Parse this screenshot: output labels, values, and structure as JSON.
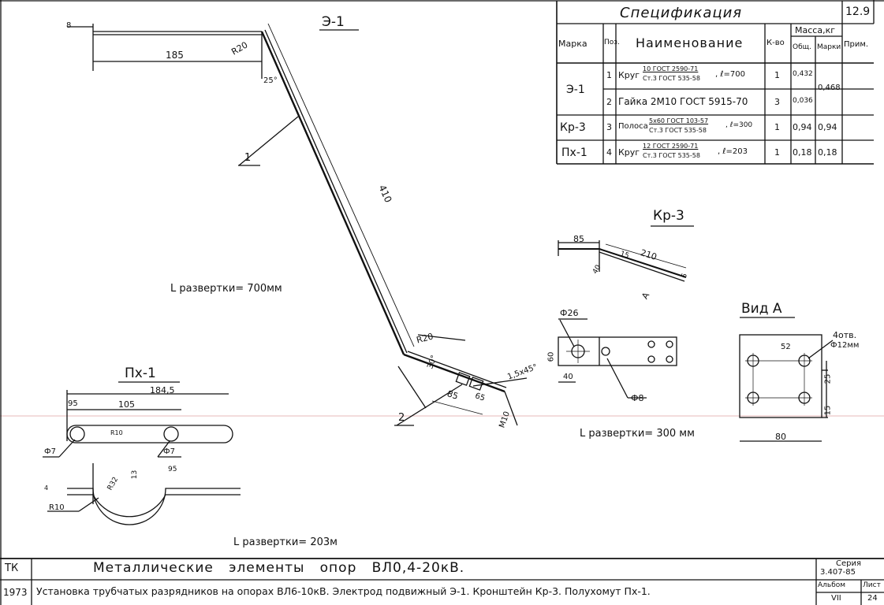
{
  "sheet_number": "12.9",
  "spec": {
    "title": "Спецификация",
    "headers": {
      "marka": "Марка",
      "poz": "Поз.",
      "name": "Наименование",
      "qty": "К-во",
      "mass": "Масса,кг",
      "mass_total": "Общ.",
      "mass_mark": "Марки",
      "note": "Прим."
    },
    "rows": [
      {
        "marka": "Э-1",
        "poz": "1",
        "name_pre": "Круг",
        "frac_top": "10 ГОСТ 2590-71",
        "frac_bottom": "Ст.3 ГОСТ 535-58",
        "name_post": ", ℓ=700",
        "qty": "1",
        "mass_total": "0,432",
        "mass_mark": "0,468"
      },
      {
        "marka": "",
        "poz": "2",
        "name_pre": "Гайка 2М10 ГОСТ 5915-70",
        "frac_top": "",
        "frac_bottom": "",
        "name_post": "",
        "qty": "3",
        "mass_total": "0,036",
        "mass_mark": ""
      },
      {
        "marka": "Кр-3",
        "poz": "3",
        "name_pre": "Полоса",
        "frac_top": "5х60 ГОСТ 103-57",
        "frac_bottom": "Ст.3 ГОСТ 535-58",
        "name_post": ", ℓ=300",
        "qty": "1",
        "mass_total": "0,94",
        "mass_mark": "0,94"
      },
      {
        "marka": "Пх-1",
        "poz": "4",
        "name_pre": "Круг",
        "frac_top": "12 ГОСТ 2590-71",
        "frac_bottom": "Ст.3 ГОСТ 535-58",
        "name_post": ", ℓ=203",
        "qty": "1",
        "mass_total": "0,18",
        "mass_mark": "0,18"
      }
    ]
  },
  "e1": {
    "title": "Э-1",
    "dim_185": "185",
    "dim_r20_top": "R20",
    "dim_angle_25": "25°",
    "dim_410": "410",
    "dim_r20_bottom": "R20",
    "dim_30": "30°",
    "dim_85": "85",
    "dim_65": "65",
    "dim_chamfer": "1,5х45°",
    "dim_m10": "М10",
    "dim_small": "8",
    "pos_1": "1",
    "pos_2": "2",
    "unfold": "L развертки= 700мм"
  },
  "kr3": {
    "title": "Кр-3",
    "dim_85": "85",
    "dim_210": "210",
    "dim_40": "40",
    "dim_6": "6",
    "dim_15": "15",
    "view_label": "А",
    "dim_phi26": "Ф26",
    "dim_60": "60",
    "dim_40b": "40",
    "dim_phi8": "Ф8",
    "unfold": "L развертки= 300 мм"
  },
  "view_a": {
    "title": "Вид А",
    "holes_note_1": "4отв.",
    "holes_note_2": "Ф12мм",
    "dim_52": "52",
    "dim_25": "25",
    "dim_15": "15",
    "dim_80": "80"
  },
  "px1": {
    "title": "Пх-1",
    "dim_1845": "184,5",
    "dim_95": "95",
    "dim_105": "105",
    "dim_r10": "R10",
    "dim_phi7_left": "Ф7",
    "dim_phi7_right": "Ф7",
    "dim_r10_bottom": "R10",
    "dim_r32": "R32",
    "dim_13": "13",
    "dim_95b": "95",
    "dim_4": "4",
    "unfold": "L развертки= 203м"
  },
  "title_block": {
    "tk": "ТК",
    "main": "Металлические   элементы   опор   ВЛ0,4-20кВ.",
    "year": "1973",
    "desc": "Установка трубчатых разрядников на опорах ВЛ6-10кВ. Электрод подвижный Э-1. Кронштейн Кр-3. Полухомут Пх-1.",
    "series_label": "Серия",
    "series_value": "3.407-85",
    "album_label": "Альбом",
    "album_value": "VII",
    "sheet_label": "Лист",
    "sheet_value": "24"
  },
  "colors": {
    "ink": "#111111",
    "paper": "#ffffff",
    "guide_line": "#e7b8b8"
  }
}
